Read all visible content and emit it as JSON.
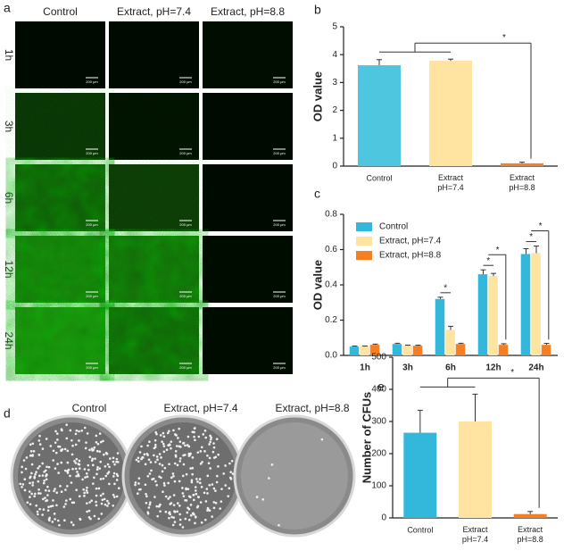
{
  "panel_labels": [
    "a",
    "b",
    "c",
    "d",
    "e"
  ],
  "panel_a": {
    "columns": [
      "Control",
      "Extract, pH=7.4",
      "Extract, pH=8.8"
    ],
    "rows": [
      "1h",
      "3h",
      "6h",
      "12h",
      "24h"
    ],
    "scale_bar": "200 μm"
  },
  "panel_d": {
    "columns": [
      "Control",
      "Extract, pH=7.4",
      "Extract, pH=8.8"
    ]
  },
  "chart_data": [
    {
      "type": "bar",
      "ylabel": "OD value",
      "categories": [
        "Control",
        "Extract pH=7.4",
        "Extract pH=8.8"
      ],
      "values": [
        3.62,
        3.78,
        0.1
      ],
      "errors": [
        0.2,
        0.06,
        0.04
      ],
      "colors": [
        "#4fc6e0",
        "#ffe3a0",
        "#f77e21"
      ],
      "ylim": [
        0,
        5
      ],
      "yticks": [
        0,
        1,
        2,
        3,
        4,
        5
      ],
      "annotation": "*"
    },
    {
      "type": "grouped_bar",
      "ylabel": "OD value",
      "categories": [
        "1h",
        "3h",
        "6h",
        "12h",
        "24h"
      ],
      "series": [
        {
          "name": "Control",
          "color": "#33b8dc",
          "values": [
            0.05,
            0.065,
            0.32,
            0.46,
            0.575
          ],
          "errors": [
            0.003,
            0.004,
            0.01,
            0.025,
            0.03
          ]
        },
        {
          "name": "Extract, pH=7.4",
          "color": "#ffe3a0",
          "values": [
            0.05,
            0.055,
            0.145,
            0.45,
            0.58
          ],
          "errors": [
            0.003,
            0.003,
            0.02,
            0.015,
            0.04
          ]
        },
        {
          "name": "Extract, pH=8.8",
          "color": "#f77e21",
          "values": [
            0.06,
            0.055,
            0.065,
            0.06,
            0.06
          ],
          "errors": [
            0.004,
            0.003,
            0.004,
            0.006,
            0.008
          ]
        }
      ],
      "ylim": [
        0,
        0.8
      ],
      "yticks": [
        {
          "value": 0,
          "label": "0.0"
        },
        {
          "value": 0.2,
          "label": "0.2"
        },
        {
          "value": 0.4,
          "label": "0.4"
        },
        {
          "value": 0.6,
          "label": "0.6"
        },
        {
          "value": 0.8,
          "label": "0.8"
        }
      ],
      "legend": "upper left",
      "annotation": "*"
    },
    {
      "type": "bar",
      "ylabel": "Number of CFUs",
      "categories": [
        "Control",
        "Extract pH=7.4",
        "Extract pH=8.8"
      ],
      "values": [
        265,
        300,
        12
      ],
      "errors": [
        70,
        85,
        8
      ],
      "colors": [
        "#33b8dc",
        "#ffe3a0",
        "#f77e21"
      ],
      "ylim": [
        0,
        500
      ],
      "yticks": [
        0,
        100,
        200,
        300,
        400,
        500
      ],
      "annotation": "*"
    }
  ]
}
